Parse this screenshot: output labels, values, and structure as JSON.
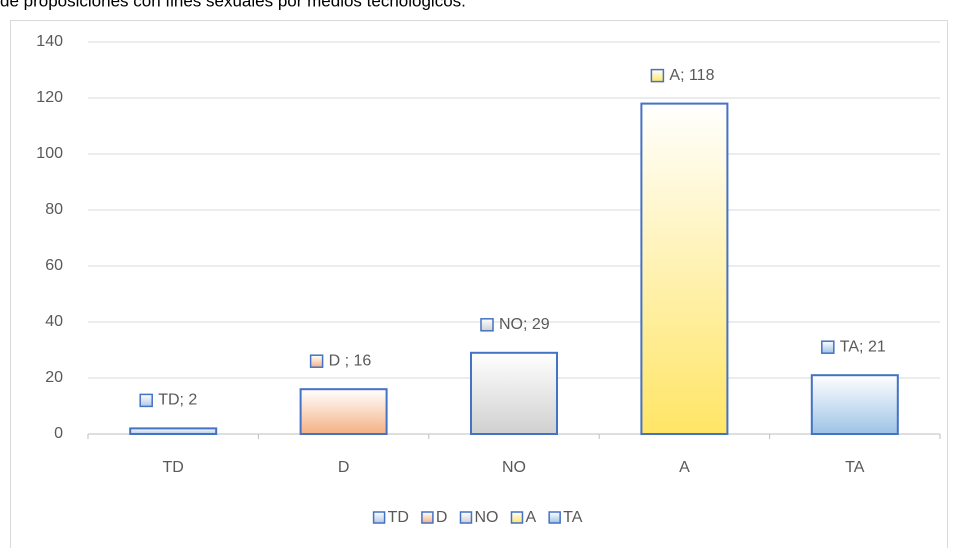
{
  "chart_data": {
    "type": "bar",
    "title": "de proposiciones con fines sexuales por medios tecnológicos.",
    "categories": [
      "TD",
      "D",
      "NO",
      "A",
      "TA"
    ],
    "values": [
      2,
      16,
      29,
      118,
      21
    ],
    "value_labels": [
      "TD; 2",
      "D ; 16",
      "NO; 29",
      "A; 118",
      "TA; 21"
    ],
    "colors": [
      "#b4c7e7",
      "#f4b183",
      "#d0d0d0",
      "#ffe566",
      "#9dc3e6"
    ],
    "outline": "#4472c4",
    "ylim": [
      0,
      140
    ],
    "yticks": [
      0,
      20,
      40,
      60,
      80,
      100,
      120,
      140
    ],
    "grid": true,
    "legend": "bottom"
  }
}
